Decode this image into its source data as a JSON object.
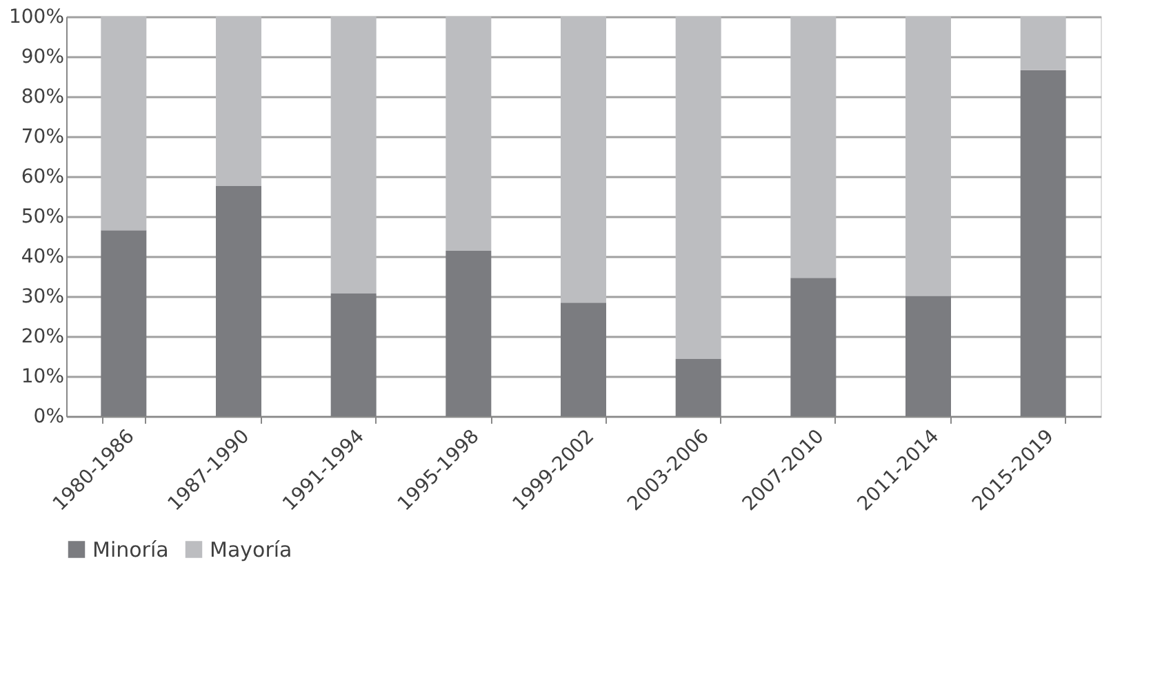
{
  "chart_data": {
    "type": "bar",
    "stacked": true,
    "categories": [
      "1980-1986",
      "1987-1990",
      "1991-1994",
      "1995-1998",
      "1999-2002",
      "2003-2006",
      "2007-2010",
      "2011-2014",
      "2015-2019"
    ],
    "series": [
      {
        "name": "Minoría",
        "color": "#7b7c80",
        "values": [
          46.5,
          57.6,
          30.7,
          41.4,
          28.4,
          14.3,
          34.6,
          30.1,
          86.6
        ]
      },
      {
        "name": "Mayoría",
        "color": "#bcbdc0",
        "values": [
          53.5,
          42.4,
          69.3,
          58.6,
          71.6,
          85.7,
          65.4,
          69.9,
          13.4
        ]
      }
    ],
    "ylim": [
      0,
      100
    ],
    "yticks": [
      {
        "value": 0,
        "label": "0%"
      },
      {
        "value": 10,
        "label": "10%"
      },
      {
        "value": 20,
        "label": "20%"
      },
      {
        "value": 30,
        "label": "30%"
      },
      {
        "value": 40,
        "label": "40%"
      },
      {
        "value": 50,
        "label": "50%"
      },
      {
        "value": 60,
        "label": "60%"
      },
      {
        "value": 70,
        "label": "70%"
      },
      {
        "value": 80,
        "label": "80%"
      },
      {
        "value": 90,
        "label": "90%"
      },
      {
        "value": 100,
        "label": "100%"
      }
    ],
    "grid": "y",
    "legend": "bottom"
  }
}
